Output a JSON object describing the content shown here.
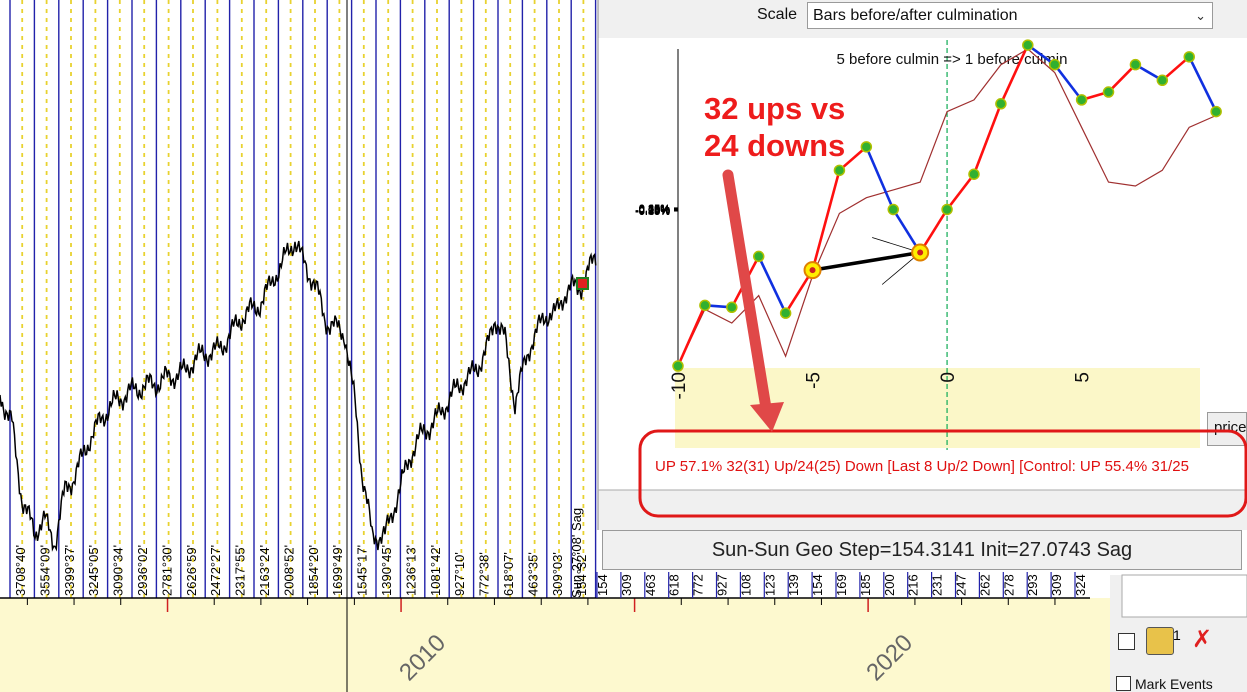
{
  "scale": {
    "label": "Scale",
    "selected": "Bars before/after culmination"
  },
  "status": {
    "text": "Sun-Sun Geo  Step=154.3141  Init=27.0743 Sag"
  },
  "stats": {
    "text": "UP 57.1%  32(31) Up/24(25) Down [Last 8 Up/2 Down] [Control: UP 55.4%  31/25"
  },
  "annotation": {
    "line1": "32 ups vs",
    "line2": "24 downs"
  },
  "price_button": {
    "label": "price"
  },
  "mark_events": {
    "label": "Mark Events"
  },
  "tool_number": "1",
  "marker_label": "Sun  27°08' Sag",
  "colors": {
    "accent": "#ee1c1c",
    "series": "#ff0000",
    "down_segment": "#1030e0",
    "control": "#a03030",
    "point": "#30b030",
    "highlight": "#ffee00",
    "plot_bg": "#fbf7c8"
  },
  "chart_data": [
    {
      "type": "line",
      "title": "",
      "xlabel": "",
      "ylabel": "",
      "x_axis": "date",
      "xlim": [
        "2001-06-01",
        "2024-10-01"
      ],
      "ylim": [
        0,
        100
      ],
      "xticks": [
        "2010",
        "2020"
      ],
      "degree_labels": [
        "3708°40'",
        "3554°09'",
        "3399°37'",
        "3245°05'",
        "3090°34'",
        "2936°02'",
        "2781°30'",
        "2626°59'",
        "2472°27'",
        "2317°55'",
        "2163°24'",
        "2008°52'",
        "1854°20'",
        "1699°49'",
        "1545°17'",
        "1390°45'",
        "1236°13'",
        "1081°42'",
        "927°10'",
        "772°38'",
        "618°07'",
        "463°35'",
        "309°03'",
        "154°32'"
      ],
      "degree_labels_partial": [
        "154",
        "309",
        "463",
        "618",
        "772",
        "927",
        "108",
        "123",
        "139",
        "154",
        "169",
        "185",
        "200",
        "216",
        "231",
        "247",
        "262",
        "278",
        "293",
        "309",
        "324"
      ]
    },
    {
      "type": "line",
      "title": "5 before culmin => 1 before culmin",
      "xlabel": "",
      "ylabel": "",
      "xlim": [
        -10,
        9.4
      ],
      "ylim": [
        -0.4,
        0.41
      ],
      "xticks": [
        "-10",
        "-5",
        "0",
        "5"
      ],
      "yticks": [
        "0.40%",
        "0.35%",
        "0.30%",
        "0.25%",
        "0.20%",
        "0.15%",
        "0.10%",
        "0.05%",
        "0.00%",
        "-0.05%",
        "-0.10%",
        "-0.15%",
        "-0.20%",
        "-0.25%",
        "-0.30%",
        "-0.35%",
        "-0.40%"
      ],
      "series": [
        {
          "x": [
            -10,
            -9,
            -8,
            -7,
            -6,
            -5,
            -4,
            -3,
            -2,
            -1,
            0,
            1,
            2,
            3,
            4,
            5,
            6,
            7,
            8,
            9,
            10
          ],
          "values": [
            -0.4,
            -0.245,
            -0.25,
            -0.12,
            -0.265,
            -0.155,
            0.1,
            0.16,
            0.0,
            -0.11,
            0.0,
            0.09,
            0.27,
            0.42,
            0.37,
            0.28,
            0.3,
            0.37,
            0.33,
            0.39,
            0.25
          ]
        },
        {
          "x": [
            -10,
            -9,
            -8,
            -7,
            -6,
            -5,
            -4,
            -3,
            -2,
            -1,
            0,
            1,
            2,
            3,
            4,
            5,
            6,
            7,
            8,
            9,
            10
          ],
          "values": [
            -0.4,
            -0.255,
            -0.29,
            -0.22,
            -0.375,
            -0.17,
            -0.01,
            0.03,
            0.05,
            0.07,
            0.25,
            0.28,
            0.37,
            0.41,
            0.35,
            0.21,
            0.07,
            0.06,
            0.1,
            0.21,
            0.24
          ]
        }
      ],
      "highlight_points": [
        -5,
        -1
      ],
      "culmination_x": 0
    }
  ]
}
